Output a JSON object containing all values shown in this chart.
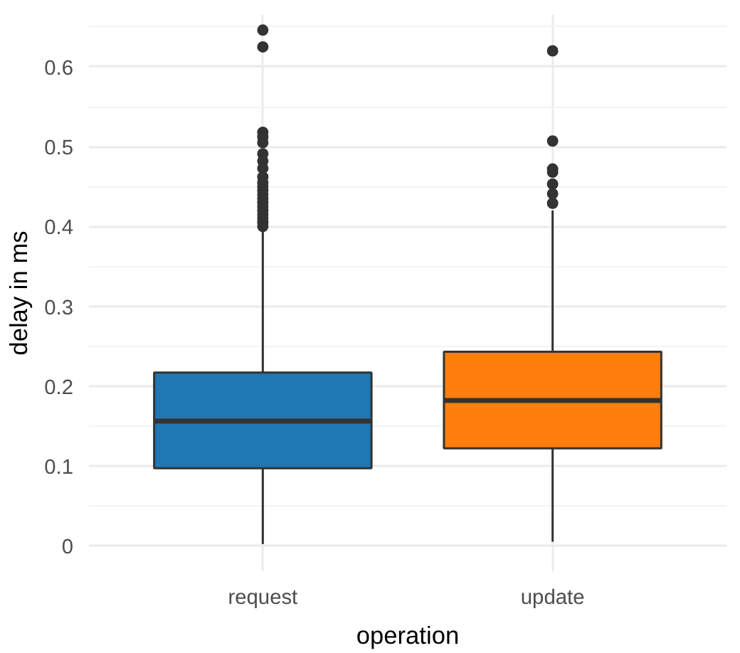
{
  "chart_data": {
    "type": "box",
    "xlabel": "operation",
    "ylabel": "delay in ms",
    "categories": [
      "request",
      "update"
    ],
    "colors": [
      "#1f77b4",
      "#ff7f0e"
    ],
    "boxes": [
      {
        "low": 0.002,
        "q1": 0.097,
        "median": 0.156,
        "q3": 0.217,
        "high": 0.398,
        "outliers": [
          0.646,
          0.625,
          0.518,
          0.512,
          0.505,
          0.491,
          0.482,
          0.473,
          0.462,
          0.455,
          0.45,
          0.445,
          0.44,
          0.435,
          0.43,
          0.425,
          0.42,
          0.415,
          0.41,
          0.405,
          0.4
        ]
      },
      {
        "low": 0.005,
        "q1": 0.122,
        "median": 0.182,
        "q3": 0.243,
        "high": 0.42,
        "outliers": [
          0.62,
          0.507,
          0.472,
          0.468,
          0.453,
          0.441,
          0.429
        ]
      }
    ],
    "ylim": [
      -0.032,
      0.665
    ],
    "yticks": [
      {
        "value": 0,
        "label": "0"
      },
      0.1,
      0.2,
      0.3,
      0.4,
      0.5,
      0.6
    ],
    "grid": true
  }
}
